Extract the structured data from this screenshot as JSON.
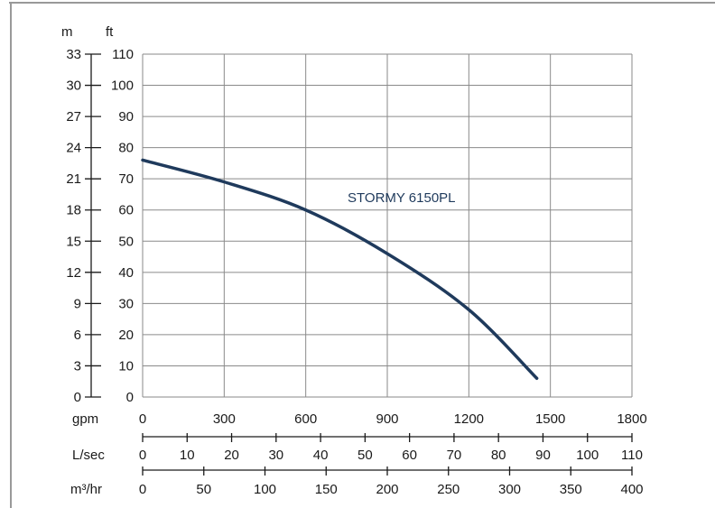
{
  "chart_data": {
    "type": "line",
    "series_label": "STORMY 6150PL",
    "series_color": "#1f3a5c",
    "y_axes": [
      {
        "unit": "m",
        "min": 0,
        "max": 33,
        "ticks": [
          "0",
          "3",
          "6",
          "9",
          "12",
          "15",
          "18",
          "21",
          "24",
          "27",
          "30",
          "33"
        ]
      },
      {
        "unit": "ft",
        "min": 0,
        "max": 110,
        "ticks": [
          "0",
          "10",
          "20",
          "30",
          "40",
          "50",
          "60",
          "70",
          "80",
          "90",
          "100",
          "110"
        ]
      }
    ],
    "x_axes": [
      {
        "unit": "gpm",
        "min": 0,
        "max": 1800,
        "ticks": [
          "0",
          "300",
          "600",
          "900",
          "1200",
          "1500",
          "1800"
        ]
      },
      {
        "unit": "L/sec",
        "min": 0,
        "max": 110,
        "ticks": [
          "0",
          "10",
          "20",
          "30",
          "40",
          "50",
          "60",
          "70",
          "80",
          "90",
          "100",
          "110"
        ]
      },
      {
        "unit": "m³/hr",
        "min": 0,
        "max": 400,
        "ticks": [
          "0",
          "50",
          "100",
          "150",
          "200",
          "250",
          "300",
          "350",
          "400"
        ]
      }
    ],
    "grid": true,
    "points": [
      {
        "x": 0,
        "y": 76
      },
      {
        "x": 300,
        "y": 69
      },
      {
        "x": 600,
        "y": 60
      },
      {
        "x": 900,
        "y": 46
      },
      {
        "x": 1200,
        "y": 28
      },
      {
        "x": 1450,
        "y": 6
      }
    ]
  }
}
